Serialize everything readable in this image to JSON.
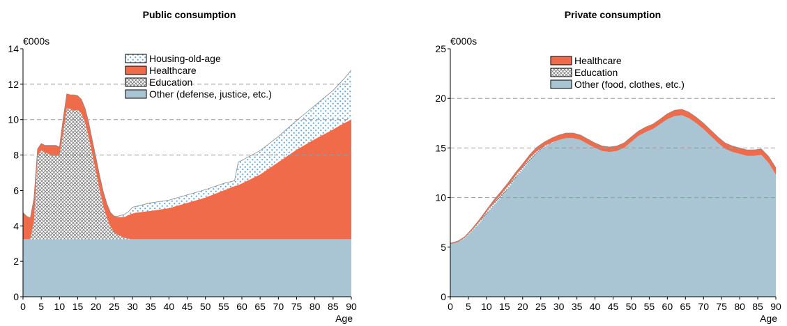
{
  "colors": {
    "other": "#a9c4d3",
    "healthcare": "#f06b4a",
    "education": "#9a9a9a",
    "housing": "#5fa7d9",
    "grid": "#999999"
  },
  "chart_data": [
    {
      "type": "area",
      "title": "Public consumption",
      "unit_label": "€000s",
      "xlabel": "Age",
      "xlim": [
        0,
        90
      ],
      "ylim": [
        0,
        14
      ],
      "x_ticks": [
        0,
        5,
        10,
        15,
        20,
        25,
        30,
        35,
        40,
        45,
        50,
        55,
        60,
        65,
        70,
        75,
        80,
        85,
        90
      ],
      "y_ticks": [
        0,
        2,
        4,
        6,
        8,
        10,
        12,
        14
      ],
      "dashed_gridlines": [
        8,
        10,
        12
      ],
      "legend_position": "top-center",
      "legend_order": [
        "Housing-old-age",
        "Healthcare",
        "Education",
        "Other (defense, justice, etc.)"
      ],
      "x": [
        0,
        1,
        2,
        3,
        4,
        5,
        6,
        7,
        8,
        9,
        10,
        11,
        12,
        13,
        14,
        15,
        16,
        17,
        18,
        19,
        20,
        21,
        22,
        23,
        24,
        25,
        26,
        27,
        28,
        29,
        30,
        31,
        35,
        40,
        45,
        50,
        55,
        58,
        59,
        60,
        65,
        70,
        75,
        80,
        85,
        88,
        90
      ],
      "series": [
        {
          "name": "Other (defense, justice, etc.)",
          "pattern": "solid",
          "values": [
            3.25,
            3.25,
            3.25,
            3.25,
            3.25,
            3.25,
            3.25,
            3.25,
            3.25,
            3.25,
            3.25,
            3.25,
            3.25,
            3.25,
            3.25,
            3.25,
            3.25,
            3.25,
            3.25,
            3.25,
            3.25,
            3.25,
            3.25,
            3.25,
            3.25,
            3.25,
            3.25,
            3.25,
            3.25,
            3.25,
            3.25,
            3.25,
            3.25,
            3.25,
            3.25,
            3.25,
            3.25,
            3.25,
            3.25,
            3.25,
            3.25,
            3.25,
            3.25,
            3.25,
            3.25,
            3.25,
            3.25
          ]
        },
        {
          "name": "Education",
          "pattern": "crosshatch",
          "values": [
            0,
            0,
            0,
            1.0,
            4.7,
            5.0,
            4.9,
            4.8,
            4.7,
            4.7,
            4.7,
            6.0,
            7.4,
            7.35,
            7.25,
            7.3,
            7.1,
            6.6,
            5.8,
            4.8,
            3.8,
            2.8,
            1.9,
            1.2,
            0.7,
            0.4,
            0.25,
            0.15,
            0.07,
            0.02,
            0,
            0,
            0,
            0,
            0,
            0,
            0,
            0,
            0,
            0,
            0,
            0,
            0,
            0,
            0,
            0,
            0
          ]
        },
        {
          "name": "Healthcare",
          "pattern": "solid",
          "values": [
            1.5,
            1.3,
            1.2,
            1.3,
            0.4,
            0.4,
            0.4,
            0.5,
            0.6,
            0.6,
            0.5,
            0.8,
            0.8,
            0.8,
            0.9,
            0.8,
            0.8,
            0.8,
            0.8,
            0.8,
            0.8,
            0.8,
            0.8,
            0.8,
            0.8,
            0.9,
            1.0,
            1.1,
            1.2,
            1.35,
            1.45,
            1.5,
            1.6,
            1.75,
            2.05,
            2.35,
            2.75,
            3.0,
            3.05,
            3.15,
            3.65,
            4.35,
            5.05,
            5.65,
            6.2,
            6.55,
            6.75
          ]
        },
        {
          "name": "Housing-old-age",
          "pattern": "dotted",
          "values": [
            0,
            0,
            0,
            0,
            0,
            0,
            0,
            0,
            0,
            0,
            0,
            0,
            0,
            0,
            0,
            0,
            0,
            0,
            0,
            0,
            0,
            0,
            0,
            0,
            0,
            0,
            0.05,
            0.1,
            0.15,
            0.2,
            0.35,
            0.35,
            0.45,
            0.45,
            0.45,
            0.45,
            0.4,
            0.3,
            1.3,
            1.3,
            1.35,
            1.45,
            1.65,
            1.9,
            2.2,
            2.5,
            2.8
          ]
        }
      ]
    },
    {
      "type": "area",
      "title": "Private consumption",
      "unit_label": "€000s",
      "xlabel": "Age",
      "xlim": [
        0,
        90
      ],
      "ylim": [
        0,
        25
      ],
      "x_ticks": [
        0,
        5,
        10,
        15,
        20,
        25,
        30,
        35,
        40,
        45,
        50,
        55,
        60,
        65,
        70,
        75,
        80,
        85,
        90
      ],
      "y_ticks": [
        0,
        5,
        10,
        15,
        20,
        25
      ],
      "dashed_gridlines": [
        10,
        15,
        20
      ],
      "legend_position": "top-center",
      "legend_order": [
        "Healthcare",
        "Education",
        "Other (food, clothes, etc.)"
      ],
      "x": [
        0,
        2,
        4,
        6,
        8,
        10,
        12,
        14,
        16,
        18,
        20,
        22,
        24,
        26,
        28,
        30,
        32,
        34,
        36,
        38,
        40,
        42,
        44,
        46,
        48,
        50,
        52,
        54,
        56,
        58,
        60,
        62,
        64,
        66,
        68,
        70,
        72,
        74,
        76,
        78,
        80,
        82,
        84,
        86,
        88,
        90
      ],
      "series": [
        {
          "name": "Other (food, clothes, etc.)",
          "pattern": "solid",
          "values": [
            5.3,
            5.5,
            5.9,
            6.6,
            7.4,
            8.3,
            9.2,
            10.0,
            10.9,
            11.9,
            12.8,
            13.7,
            14.5,
            15.1,
            15.5,
            15.8,
            16.0,
            16.0,
            15.8,
            15.4,
            15.0,
            14.7,
            14.6,
            14.7,
            15.0,
            15.6,
            16.2,
            16.6,
            16.9,
            17.4,
            17.9,
            18.2,
            18.3,
            18.0,
            17.5,
            16.9,
            16.2,
            15.5,
            14.9,
            14.6,
            14.4,
            14.2,
            14.2,
            14.3,
            13.5,
            12.3
          ]
        },
        {
          "name": "Education",
          "pattern": "crosshatch",
          "values": [
            0,
            0,
            0.05,
            0.1,
            0.15,
            0.25,
            0.3,
            0.3,
            0.3,
            0.3,
            0.3,
            0.3,
            0.2,
            0.1,
            0.05,
            0,
            0,
            0,
            0,
            0,
            0,
            0,
            0,
            0,
            0,
            0,
            0,
            0,
            0,
            0,
            0,
            0,
            0,
            0,
            0,
            0,
            0,
            0,
            0,
            0,
            0,
            0,
            0,
            0,
            0,
            0
          ]
        },
        {
          "name": "Healthcare",
          "pattern": "solid",
          "values": [
            0.1,
            0.1,
            0.1,
            0.15,
            0.2,
            0.2,
            0.25,
            0.3,
            0.3,
            0.3,
            0.3,
            0.35,
            0.4,
            0.4,
            0.45,
            0.5,
            0.5,
            0.5,
            0.5,
            0.5,
            0.5,
            0.5,
            0.5,
            0.5,
            0.5,
            0.5,
            0.5,
            0.5,
            0.5,
            0.5,
            0.55,
            0.6,
            0.6,
            0.6,
            0.6,
            0.6,
            0.6,
            0.6,
            0.6,
            0.6,
            0.6,
            0.6,
            0.6,
            0.6,
            0.65,
            0.7
          ]
        }
      ]
    }
  ]
}
